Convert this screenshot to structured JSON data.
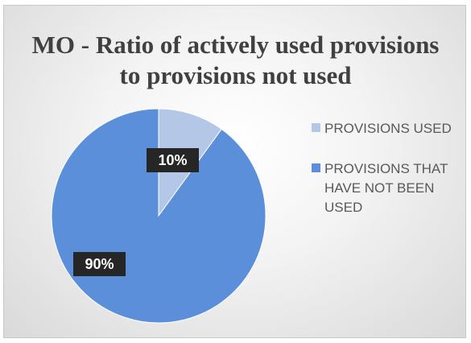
{
  "chart_data": {
    "type": "pie",
    "title": "MO - Ratio of actively used provisions to provisions not used",
    "categories": [
      "PROVISIONS USED",
      "PROVISIONS THAT HAVE NOT BEEN USED"
    ],
    "values": [
      10,
      90
    ],
    "data_labels": [
      "10%",
      "90%"
    ],
    "colors": [
      "#b4c7e7",
      "#5b8fd9"
    ],
    "legend_position": "right"
  }
}
